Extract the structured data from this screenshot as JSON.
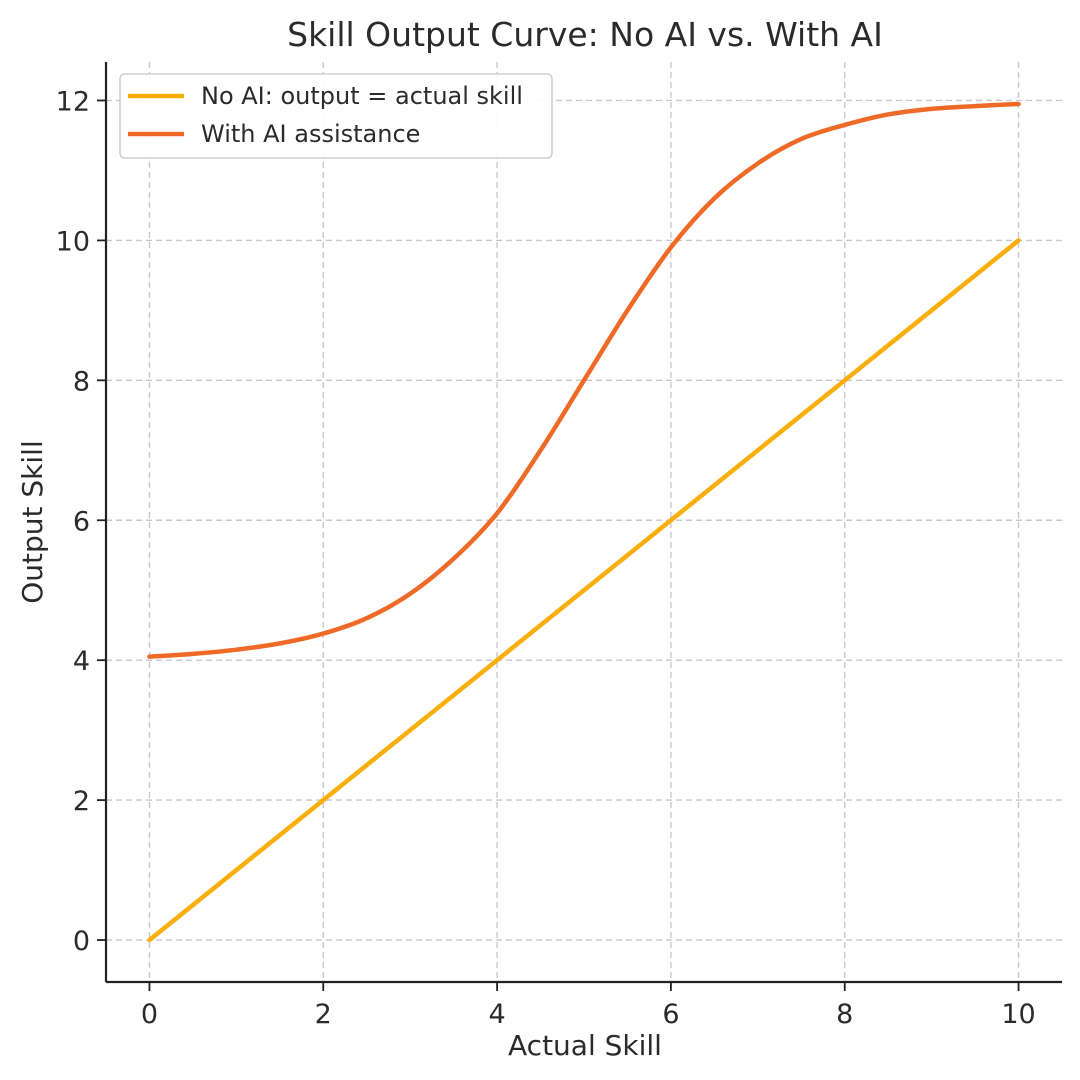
{
  "chart_data": {
    "type": "line",
    "title": "Skill Output Curve: No AI vs. With AI",
    "xlabel": "Actual Skill",
    "ylabel": "Output Skill",
    "xlim": [
      -0.5,
      10.5
    ],
    "ylim": [
      -0.6,
      12.55
    ],
    "xticks": [
      0,
      2,
      4,
      6,
      8,
      10
    ],
    "yticks": [
      0,
      2,
      4,
      6,
      8,
      10,
      12
    ],
    "grid": true,
    "legend_position": "top-left",
    "series": [
      {
        "name": "No AI: output = actual skill",
        "color": "#F9AE0C",
        "x": [
          0,
          10
        ],
        "y": [
          0,
          10
        ]
      },
      {
        "name": "With AI assistance",
        "color": "#EF6A27",
        "x": [
          0,
          0.5,
          1,
          1.5,
          2,
          2.5,
          3,
          3.5,
          4,
          4.5,
          5,
          5.5,
          6,
          6.5,
          7,
          7.5,
          8,
          8.5,
          9,
          9.5,
          10
        ],
        "y": [
          4.05,
          4.09,
          4.15,
          4.24,
          4.38,
          4.6,
          4.95,
          5.45,
          6.1,
          7.0,
          8.0,
          9.0,
          9.9,
          10.6,
          11.1,
          11.45,
          11.65,
          11.8,
          11.88,
          11.92,
          11.95
        ]
      }
    ]
  }
}
